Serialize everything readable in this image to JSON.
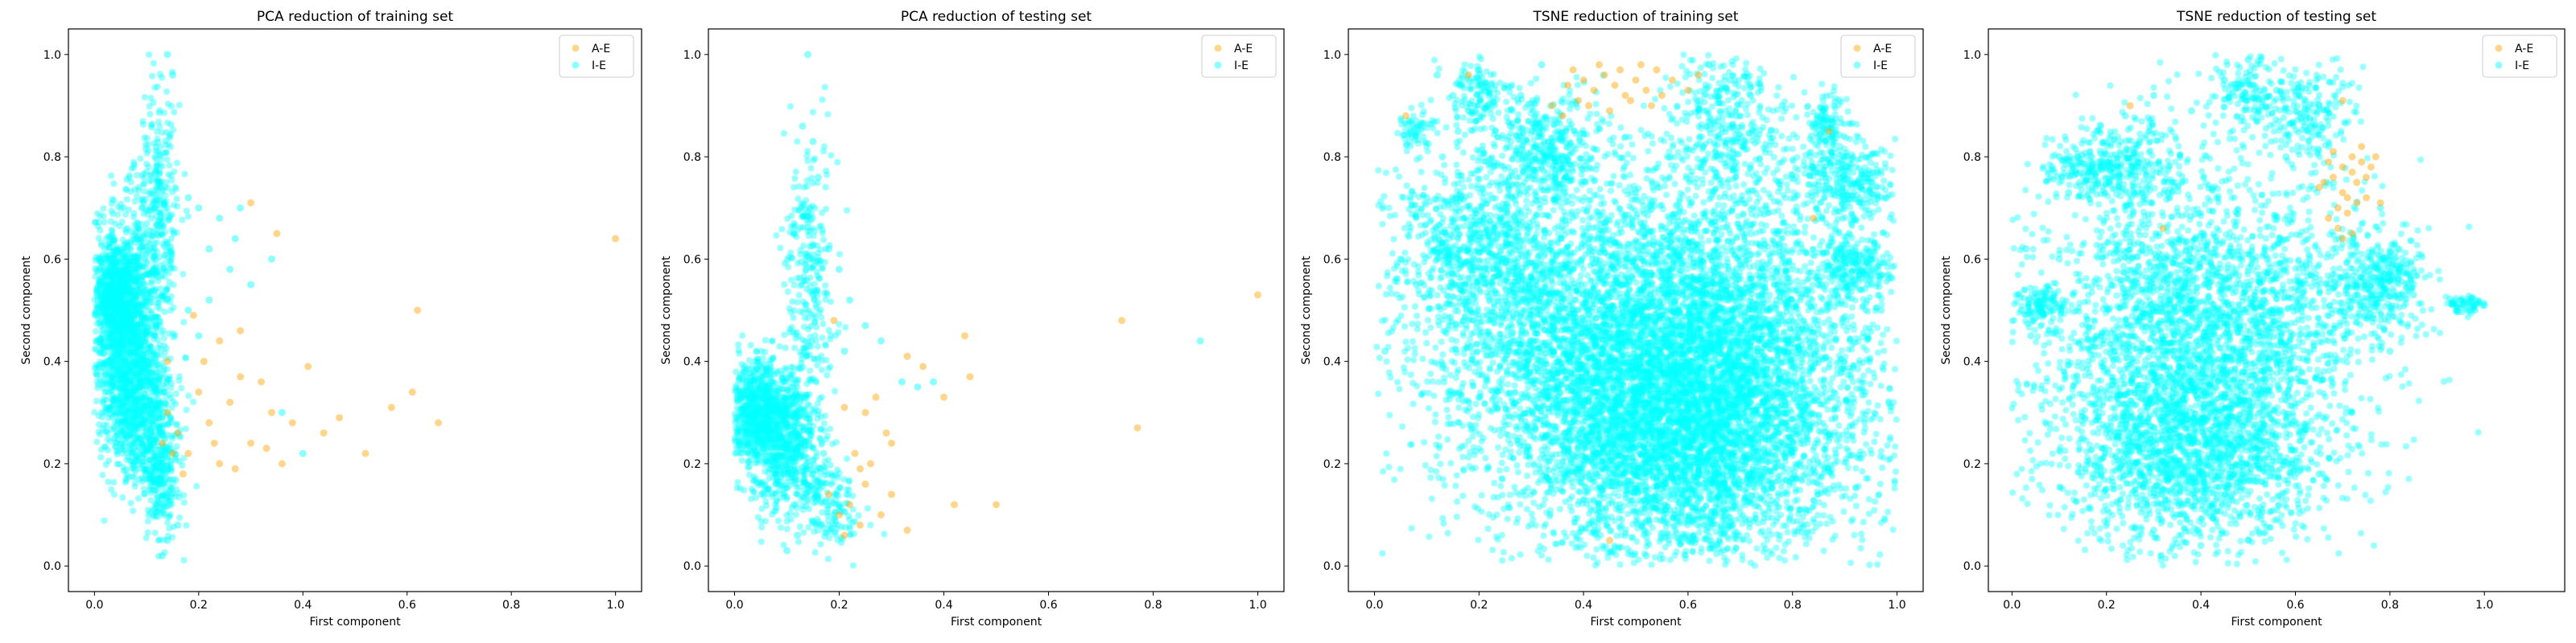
{
  "chart_data": [
    {
      "type": "scatter",
      "title": "PCA reduction of training set",
      "xlabel": "First component",
      "ylabel": "Second component",
      "xlim": [
        -0.05,
        1.05
      ],
      "ylim": [
        -0.05,
        1.05
      ],
      "xticks": [
        "0.0",
        "0.2",
        "0.4",
        "0.6",
        "0.8",
        "1.0"
      ],
      "yticks": [
        "0.0",
        "0.2",
        "0.4",
        "0.6",
        "0.8",
        "1.0"
      ],
      "legend_position": "top-right",
      "series": [
        {
          "name": "A-E",
          "color": "#ffa500",
          "points": [
            [
              0.14,
              0.3
            ],
            [
              0.16,
              0.26
            ],
            [
              0.18,
              0.22
            ],
            [
              0.2,
              0.34
            ],
            [
              0.22,
              0.28
            ],
            [
              0.24,
              0.2
            ],
            [
              0.26,
              0.32
            ],
            [
              0.28,
              0.37
            ],
            [
              0.3,
              0.24
            ],
            [
              0.32,
              0.36
            ],
            [
              0.34,
              0.3
            ],
            [
              0.36,
              0.2
            ],
            [
              0.38,
              0.28
            ],
            [
              0.41,
              0.39
            ],
            [
              0.44,
              0.26
            ],
            [
              0.47,
              0.29
            ],
            [
              0.52,
              0.22
            ],
            [
              0.57,
              0.31
            ],
            [
              0.61,
              0.34
            ],
            [
              0.62,
              0.5
            ],
            [
              0.66,
              0.28
            ],
            [
              0.28,
              0.46
            ],
            [
              0.3,
              0.71
            ],
            [
              0.35,
              0.65
            ],
            [
              0.24,
              0.44
            ],
            [
              0.19,
              0.49
            ],
            [
              0.21,
              0.4
            ],
            [
              0.17,
              0.18
            ],
            [
              0.15,
              0.22
            ],
            [
              0.13,
              0.24
            ],
            [
              0.23,
              0.24
            ],
            [
              0.27,
              0.19
            ],
            [
              0.33,
              0.23
            ],
            [
              0.14,
              0.4
            ],
            [
              1.0,
              0.64
            ]
          ]
        },
        {
          "name": "I-E",
          "color": "#00ffff",
          "points": [
            [
              0.14,
              1.0
            ],
            [
              0.15,
              0.96
            ],
            [
              0.18,
              0.72
            ],
            [
              0.2,
              0.7
            ],
            [
              0.24,
              0.68
            ],
            [
              0.28,
              0.7
            ],
            [
              0.22,
              0.62
            ],
            [
              0.26,
              0.58
            ],
            [
              0.3,
              0.55
            ],
            [
              0.34,
              0.6
            ],
            [
              0.18,
              0.5
            ],
            [
              0.2,
              0.45
            ],
            [
              0.36,
              0.3
            ],
            [
              0.4,
              0.22
            ],
            [
              0.16,
              0.08
            ],
            [
              0.14,
              0.05
            ],
            [
              0.13,
              0.02
            ],
            [
              0.12,
              0.12
            ],
            [
              0.22,
              0.52
            ],
            [
              0.27,
              0.64
            ]
          ]
        }
      ]
    },
    {
      "type": "scatter",
      "title": "PCA reduction of testing set",
      "xlabel": "First component",
      "ylabel": "Second component",
      "xlim": [
        -0.05,
        1.05
      ],
      "ylim": [
        -0.05,
        1.05
      ],
      "xticks": [
        "0.0",
        "0.2",
        "0.4",
        "0.6",
        "0.8",
        "1.0"
      ],
      "yticks": [
        "0.0",
        "0.2",
        "0.4",
        "0.6",
        "0.8",
        "1.0"
      ],
      "legend_position": "top-right",
      "series": [
        {
          "name": "A-E",
          "color": "#ffa500",
          "points": [
            [
              0.18,
              0.14
            ],
            [
              0.2,
              0.1
            ],
            [
              0.21,
              0.06
            ],
            [
              0.22,
              0.12
            ],
            [
              0.24,
              0.08
            ],
            [
              0.25,
              0.16
            ],
            [
              0.26,
              0.2
            ],
            [
              0.28,
              0.1
            ],
            [
              0.3,
              0.14
            ],
            [
              0.33,
              0.07
            ],
            [
              0.33,
              0.41
            ],
            [
              0.36,
              0.39
            ],
            [
              0.4,
              0.33
            ],
            [
              0.44,
              0.45
            ],
            [
              0.45,
              0.37
            ],
            [
              0.3,
              0.24
            ],
            [
              0.27,
              0.33
            ],
            [
              0.25,
              0.3
            ],
            [
              0.23,
              0.22
            ],
            [
              0.19,
              0.48
            ],
            [
              0.29,
              0.26
            ],
            [
              0.5,
              0.12
            ],
            [
              0.42,
              0.12
            ],
            [
              0.74,
              0.48
            ],
            [
              0.77,
              0.27
            ],
            [
              1.0,
              0.53
            ],
            [
              0.21,
              0.31
            ],
            [
              0.24,
              0.19
            ]
          ]
        },
        {
          "name": "I-E",
          "color": "#00ffff",
          "points": [
            [
              0.14,
              1.0
            ],
            [
              0.13,
              0.86
            ],
            [
              0.15,
              0.83
            ],
            [
              0.16,
              0.76
            ],
            [
              0.18,
              0.62
            ],
            [
              0.2,
              0.58
            ],
            [
              0.22,
              0.52
            ],
            [
              0.25,
              0.47
            ],
            [
              0.35,
              0.35
            ],
            [
              0.38,
              0.36
            ],
            [
              0.89,
              0.44
            ],
            [
              0.1,
              0.03
            ],
            [
              0.12,
              0.06
            ],
            [
              0.15,
              0.18
            ],
            [
              0.17,
              0.22
            ],
            [
              0.21,
              0.42
            ],
            [
              0.28,
              0.44
            ],
            [
              0.32,
              0.36
            ]
          ]
        }
      ]
    },
    {
      "type": "scatter",
      "title": "TSNE reduction of training set",
      "xlabel": "First component",
      "ylabel": "Second component",
      "xlim": [
        -0.05,
        1.05
      ],
      "ylim": [
        -0.05,
        1.05
      ],
      "xticks": [
        "0.0",
        "0.2",
        "0.4",
        "0.6",
        "0.8",
        "1.0"
      ],
      "yticks": [
        "0.0",
        "0.2",
        "0.4",
        "0.6",
        "0.8",
        "1.0"
      ],
      "legend_position": "top-right",
      "series": [
        {
          "name": "A-E",
          "color": "#ffa500",
          "points": [
            [
              0.38,
              0.97
            ],
            [
              0.4,
              0.95
            ],
            [
              0.42,
              0.93
            ],
            [
              0.44,
              0.96
            ],
            [
              0.46,
              0.94
            ],
            [
              0.48,
              0.92
            ],
            [
              0.5,
              0.95
            ],
            [
              0.52,
              0.93
            ],
            [
              0.54,
              0.97
            ],
            [
              0.41,
              0.9
            ],
            [
              0.45,
              0.89
            ],
            [
              0.49,
              0.91
            ],
            [
              0.53,
              0.9
            ],
            [
              0.36,
              0.88
            ],
            [
              0.34,
              0.9
            ],
            [
              0.6,
              0.93
            ],
            [
              0.62,
              0.96
            ],
            [
              0.57,
              0.95
            ],
            [
              0.39,
              0.91
            ],
            [
              0.43,
              0.98
            ],
            [
              0.47,
              0.97
            ],
            [
              0.51,
              0.98
            ],
            [
              0.55,
              0.92
            ],
            [
              0.37,
              0.94
            ],
            [
              0.06,
              0.88
            ],
            [
              0.18,
              0.96
            ],
            [
              0.45,
              0.05
            ],
            [
              0.87,
              0.85
            ],
            [
              0.84,
              0.68
            ]
          ]
        },
        {
          "name": "I-E",
          "color": "#00ffff",
          "points": [
            [
              0.12,
              0.96
            ],
            [
              0.15,
              0.92
            ],
            [
              0.18,
              0.89
            ],
            [
              0.2,
              0.97
            ],
            [
              0.32,
              0.98
            ],
            [
              0.64,
              0.98
            ],
            [
              0.68,
              0.95
            ],
            [
              0.72,
              0.92
            ],
            [
              0.86,
              0.87
            ],
            [
              0.88,
              0.8
            ],
            [
              0.95,
              0.75
            ],
            [
              0.98,
              0.72
            ],
            [
              0.02,
              0.42
            ],
            [
              0.05,
              0.6
            ],
            [
              0.08,
              0.55
            ],
            [
              0.1,
              0.72
            ],
            [
              0.13,
              0.8
            ],
            [
              0.16,
              0.85
            ],
            [
              0.92,
              0.55
            ],
            [
              0.95,
              0.6
            ],
            [
              0.97,
              0.5
            ],
            [
              0.9,
              0.62
            ],
            [
              0.28,
              0.92
            ],
            [
              0.78,
              0.9
            ],
            [
              0.84,
              0.78
            ],
            [
              0.07,
              0.85
            ],
            [
              0.26,
              0.86
            ],
            [
              0.6,
              0.05
            ],
            [
              0.52,
              0.02
            ],
            [
              0.42,
              0.08
            ]
          ]
        }
      ]
    },
    {
      "type": "scatter",
      "title": "TSNE reduction of testing set",
      "xlabel": "First component",
      "ylabel": "Second component",
      "xlim": [
        -0.05,
        1.17
      ],
      "ylim": [
        -0.05,
        1.05
      ],
      "xticks": [
        "0.0",
        "0.2",
        "0.4",
        "0.6",
        "0.8",
        "1.0"
      ],
      "yticks": [
        "0.0",
        "0.2",
        "0.4",
        "0.6",
        "0.8",
        "1.0"
      ],
      "legend_position": "top-right",
      "series": [
        {
          "name": "A-E",
          "color": "#ffa500",
          "points": [
            [
              0.68,
              0.76
            ],
            [
              0.7,
              0.78
            ],
            [
              0.72,
              0.8
            ],
            [
              0.74,
              0.79
            ],
            [
              0.73,
              0.75
            ],
            [
              0.71,
              0.72
            ],
            [
              0.69,
              0.7
            ],
            [
              0.66,
              0.75
            ],
            [
              0.67,
              0.79
            ],
            [
              0.75,
              0.76
            ],
            [
              0.7,
              0.73
            ],
            [
              0.72,
              0.77
            ],
            [
              0.74,
              0.82
            ],
            [
              0.68,
              0.81
            ],
            [
              0.71,
              0.69
            ],
            [
              0.65,
              0.74
            ],
            [
              0.76,
              0.78
            ],
            [
              0.73,
              0.71
            ],
            [
              0.69,
              0.66
            ],
            [
              0.7,
              0.64
            ],
            [
              0.75,
              0.72
            ],
            [
              0.67,
              0.68
            ],
            [
              0.77,
              0.8
            ],
            [
              0.7,
              0.91
            ],
            [
              0.25,
              0.9
            ],
            [
              0.32,
              0.66
            ],
            [
              0.78,
              0.71
            ],
            [
              0.72,
              0.65
            ]
          ]
        },
        {
          "name": "I-E",
          "color": "#00ffff",
          "points": [
            [
              0.1,
              0.6
            ],
            [
              0.18,
              0.85
            ],
            [
              0.24,
              0.88
            ],
            [
              0.3,
              0.92
            ],
            [
              0.38,
              0.89
            ],
            [
              0.45,
              0.95
            ],
            [
              0.5,
              0.99
            ],
            [
              0.56,
              0.93
            ],
            [
              0.62,
              0.86
            ],
            [
              0.58,
              0.8
            ],
            [
              0.65,
              0.9
            ],
            [
              0.78,
              0.7
            ],
            [
              0.82,
              0.58
            ],
            [
              0.85,
              0.53
            ],
            [
              0.95,
              0.52
            ],
            [
              0.98,
              0.5
            ],
            [
              1.0,
              0.51
            ],
            [
              0.02,
              0.5
            ],
            [
              0.03,
              0.62
            ],
            [
              0.08,
              0.54
            ],
            [
              0.12,
              0.73
            ],
            [
              0.1,
              0.8
            ],
            [
              0.04,
              0.45
            ],
            [
              0.8,
              0.42
            ],
            [
              0.72,
              0.3
            ],
            [
              0.15,
              0.25
            ],
            [
              0.3,
              0.07
            ],
            [
              0.4,
              0.04
            ],
            [
              0.5,
              0.05
            ],
            [
              0.65,
              0.18
            ]
          ]
        }
      ]
    }
  ]
}
